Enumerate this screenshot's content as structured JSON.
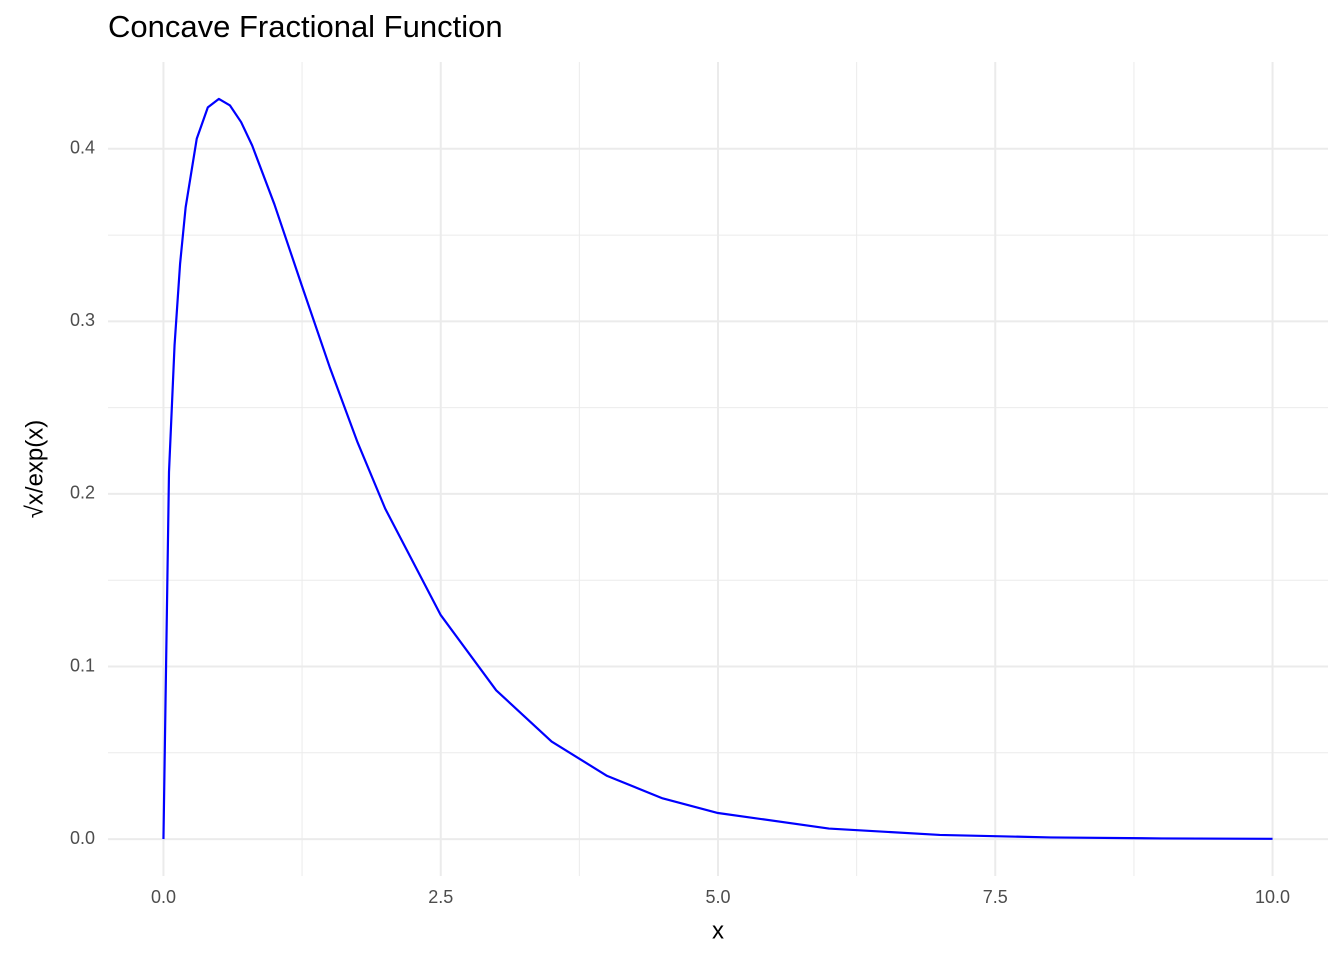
{
  "chart_data": {
    "type": "line",
    "title": "Concave Fractional Function",
    "x_label": "x",
    "y_label": "√x/exp(x)",
    "x": [
      0,
      0.05,
      0.1,
      0.15,
      0.2,
      0.3,
      0.4,
      0.5,
      0.6,
      0.7,
      0.8,
      1.0,
      1.25,
      1.5,
      1.75,
      2,
      2.5,
      3,
      3.5,
      4,
      4.5,
      5,
      6,
      7,
      8,
      9,
      10
    ],
    "values": [
      0,
      0.2127,
      0.2861,
      0.3334,
      0.3661,
      0.4058,
      0.424,
      0.4289,
      0.4251,
      0.4155,
      0.4019,
      0.3679,
      0.3203,
      0.2733,
      0.2299,
      0.1914,
      0.1298,
      0.0862,
      0.0565,
      0.0366,
      0.0236,
      0.0151,
      0.0061,
      0.0024,
      0.00095,
      0.00037,
      0.00014
    ],
    "color": "#0000ff",
    "xlim": [
      -0.5,
      10.5
    ],
    "xticks": [
      {
        "value": 0,
        "label": "0.0"
      },
      2.5,
      {
        "value": 5,
        "label": "5.0"
      },
      7.5,
      {
        "value": 10,
        "label": "10.0"
      }
    ],
    "x_minor_ticks": [
      1.25,
      3.75,
      6.25,
      8.75
    ],
    "ylim": [
      -0.0214,
      0.4503
    ],
    "yticks": [
      {
        "value": 0,
        "label": "0.0"
      },
      0.1,
      0.2,
      0.3,
      0.4
    ],
    "y_minor_ticks": [
      0.05,
      0.15,
      0.25,
      0.35
    ],
    "grid": true
  }
}
